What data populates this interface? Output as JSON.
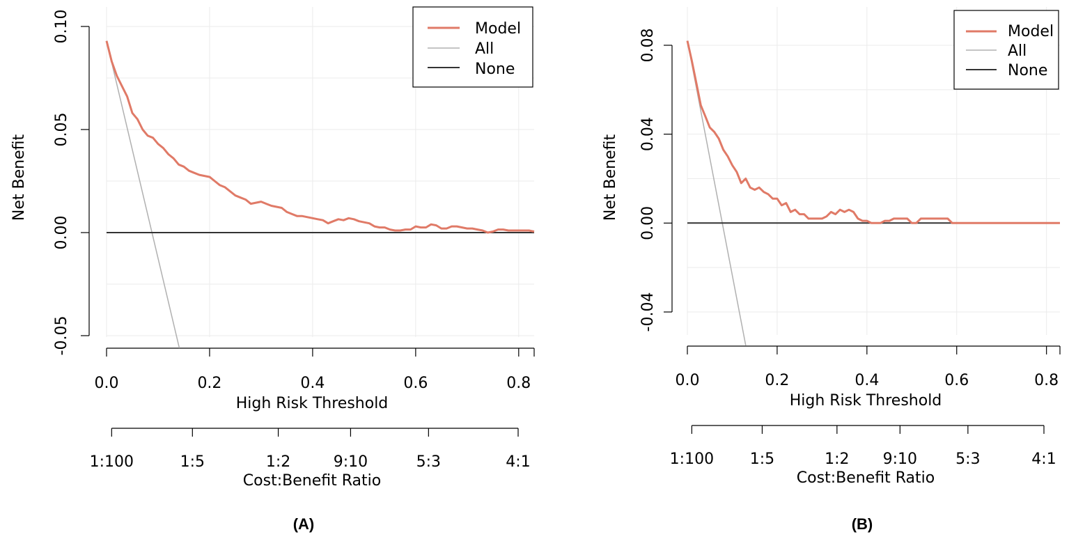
{
  "colors": {
    "model": "#e07a67",
    "all": "#b0b0b0",
    "none": "#333333"
  },
  "chart_data": [
    {
      "type": "line",
      "panel_label": "(A)",
      "xlabel": "High Risk Threshold",
      "ylabel": "Net Benefit",
      "cost_benefit_label": "Cost:Benefit Ratio",
      "xlim": [
        0.0,
        0.83
      ],
      "ylim": [
        -0.05,
        0.1
      ],
      "xticks": [
        0.0,
        0.2,
        0.4,
        0.6,
        0.8
      ],
      "xtick_labels": [
        "0.0",
        "0.2",
        "0.4",
        "0.6",
        "0.8"
      ],
      "yticks": [
        -0.05,
        0.0,
        0.05,
        0.1
      ],
      "ytick_labels": [
        "-0.05",
        "0.00",
        "0.05",
        "0.10"
      ],
      "cost_benefit_ticks": [
        {
          "label": "1:100",
          "x": 0.0099
        },
        {
          "label": "1:5",
          "x": 0.1667
        },
        {
          "label": "1:2",
          "x": 0.3333
        },
        {
          "label": "9:10",
          "x": 0.4737
        },
        {
          "label": "5:3",
          "x": 0.625
        },
        {
          "label": "4:1",
          "x": 0.8
        }
      ],
      "legend": [
        "Model",
        "All",
        "None"
      ],
      "series": [
        {
          "name": "Model",
          "x": [
            0,
            0.01,
            0.02,
            0.03,
            0.04,
            0.05,
            0.06,
            0.07,
            0.08,
            0.09,
            0.1,
            0.11,
            0.12,
            0.13,
            0.14,
            0.15,
            0.16,
            0.17,
            0.18,
            0.19,
            0.2,
            0.21,
            0.22,
            0.23,
            0.24,
            0.25,
            0.26,
            0.27,
            0.28,
            0.29,
            0.3,
            0.31,
            0.32,
            0.33,
            0.34,
            0.35,
            0.36,
            0.37,
            0.38,
            0.39,
            0.4,
            0.41,
            0.42,
            0.43,
            0.44,
            0.45,
            0.46,
            0.47,
            0.48,
            0.49,
            0.5,
            0.51,
            0.52,
            0.53,
            0.54,
            0.55,
            0.56,
            0.57,
            0.58,
            0.59,
            0.6,
            0.61,
            0.62,
            0.63,
            0.64,
            0.65,
            0.66,
            0.67,
            0.68,
            0.69,
            0.7,
            0.71,
            0.72,
            0.73,
            0.74,
            0.75,
            0.76,
            0.77,
            0.78,
            0.79,
            0.8,
            0.81,
            0.82,
            0.83
          ],
          "y": [
            0.093,
            0.083,
            0.076,
            0.071,
            0.066,
            0.058,
            0.055,
            0.05,
            0.047,
            0.046,
            0.043,
            0.041,
            0.038,
            0.036,
            0.033,
            0.032,
            0.03,
            0.029,
            0.028,
            0.0275,
            0.027,
            0.025,
            0.023,
            0.022,
            0.02,
            0.018,
            0.017,
            0.016,
            0.014,
            0.0145,
            0.015,
            0.014,
            0.013,
            0.0125,
            0.012,
            0.01,
            0.009,
            0.008,
            0.008,
            0.0075,
            0.007,
            0.0065,
            0.006,
            0.0045,
            0.0055,
            0.0065,
            0.006,
            0.007,
            0.0065,
            0.0055,
            0.005,
            0.0045,
            0.003,
            0.0025,
            0.0025,
            0.0015,
            0.001,
            0.001,
            0.0015,
            0.0015,
            0.003,
            0.0025,
            0.0025,
            0.004,
            0.0035,
            0.002,
            0.002,
            0.003,
            0.003,
            0.0025,
            0.002,
            0.002,
            0.0015,
            0.001,
            0.0,
            0.0005,
            0.0015,
            0.0015,
            0.001,
            0.001,
            0.001,
            0.001,
            0.001,
            0.0005
          ]
        },
        {
          "name": "All",
          "x": [
            0.0,
            0.1412
          ],
          "y": [
            0.093,
            -0.056
          ]
        },
        {
          "name": "None",
          "x": [
            0.0,
            0.83
          ],
          "y": [
            0.0,
            0.0
          ]
        }
      ]
    },
    {
      "type": "line",
      "panel_label": "(B)",
      "xlabel": "High Risk Threshold",
      "ylabel": "Net Benefit",
      "cost_benefit_label": "Cost:Benefit Ratio",
      "xlim": [
        0.0,
        0.83
      ],
      "ylim": [
        -0.04,
        0.08
      ],
      "xticks": [
        0.0,
        0.2,
        0.4,
        0.6,
        0.8
      ],
      "xtick_labels": [
        "0.0",
        "0.2",
        "0.4",
        "0.6",
        "0.8"
      ],
      "yticks": [
        -0.04,
        0.0,
        0.04,
        0.08
      ],
      "ytick_labels": [
        "-0.04",
        "0.00",
        "0.04",
        "0.08"
      ],
      "cost_benefit_ticks": [
        {
          "label": "1:100",
          "x": 0.0099
        },
        {
          "label": "1:5",
          "x": 0.1667
        },
        {
          "label": "1:2",
          "x": 0.3333
        },
        {
          "label": "9:10",
          "x": 0.4737
        },
        {
          "label": "5:3",
          "x": 0.625
        },
        {
          "label": "4:1",
          "x": 0.8
        }
      ],
      "legend": [
        "Model",
        "All",
        "None"
      ],
      "series": [
        {
          "name": "Model",
          "x": [
            0,
            0.01,
            0.02,
            0.03,
            0.04,
            0.05,
            0.06,
            0.07,
            0.08,
            0.09,
            0.1,
            0.11,
            0.12,
            0.13,
            0.14,
            0.15,
            0.16,
            0.17,
            0.18,
            0.19,
            0.2,
            0.21,
            0.22,
            0.23,
            0.24,
            0.25,
            0.26,
            0.27,
            0.28,
            0.29,
            0.3,
            0.31,
            0.32,
            0.33,
            0.34,
            0.35,
            0.36,
            0.37,
            0.38,
            0.39,
            0.4,
            0.41,
            0.42,
            0.43,
            0.44,
            0.45,
            0.46,
            0.47,
            0.48,
            0.49,
            0.5,
            0.51,
            0.52,
            0.53,
            0.54,
            0.55,
            0.56,
            0.57,
            0.58,
            0.59,
            0.6,
            0.65,
            0.7,
            0.75,
            0.8,
            0.83
          ],
          "y": [
            0.082,
            0.073,
            0.063,
            0.053,
            0.048,
            0.043,
            0.041,
            0.038,
            0.033,
            0.03,
            0.026,
            0.023,
            0.018,
            0.02,
            0.016,
            0.015,
            0.016,
            0.014,
            0.013,
            0.011,
            0.011,
            0.008,
            0.009,
            0.005,
            0.006,
            0.004,
            0.004,
            0.002,
            0.002,
            0.002,
            0.002,
            0.003,
            0.005,
            0.004,
            0.006,
            0.005,
            0.006,
            0.005,
            0.002,
            0.001,
            0.001,
            0.0,
            0.0,
            0.0,
            0.001,
            0.001,
            0.002,
            0.002,
            0.002,
            0.002,
            0.0,
            0.0,
            0.002,
            0.002,
            0.002,
            0.002,
            0.002,
            0.002,
            0.002,
            0.0,
            0.0,
            0.0,
            0.0,
            0.0,
            0.0,
            0.0
          ]
        },
        {
          "name": "All",
          "x": [
            0.0,
            0.13
          ],
          "y": [
            0.082,
            -0.055
          ]
        },
        {
          "name": "None",
          "x": [
            0.0,
            0.83
          ],
          "y": [
            0.0,
            0.0
          ]
        }
      ]
    }
  ]
}
